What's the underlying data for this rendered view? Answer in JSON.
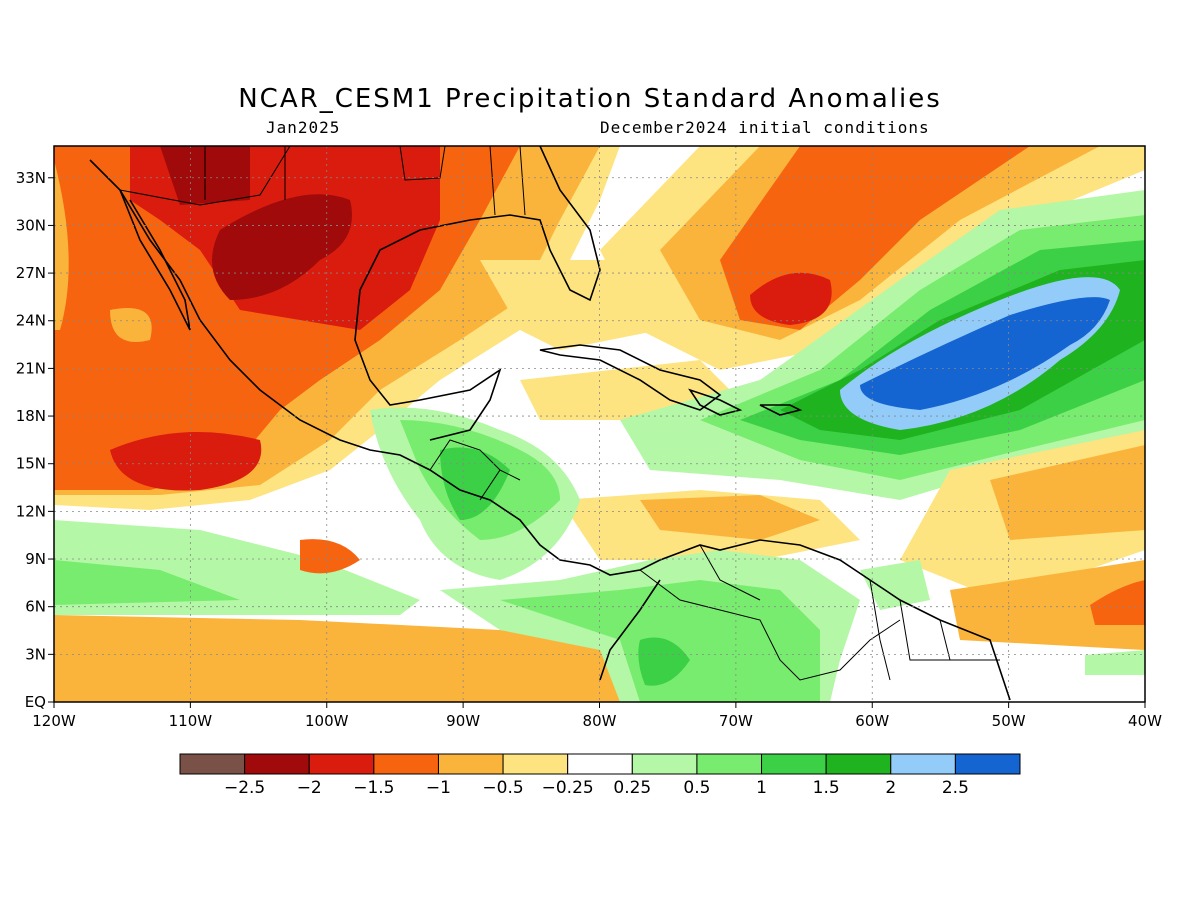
{
  "title": "NCAR_CESM1 Precipitation Standard Anomalies",
  "subtitle_left": "Jan2025",
  "subtitle_right": "December2024 initial conditions",
  "map": {
    "lon_range": [
      -120,
      -40
    ],
    "lat_range": [
      0,
      35
    ],
    "lon_ticks": [
      {
        "value": -120,
        "label": "120W"
      },
      {
        "value": -110,
        "label": "110W"
      },
      {
        "value": -100,
        "label": "100W"
      },
      {
        "value": -90,
        "label": "90W"
      },
      {
        "value": -80,
        "label": "80W"
      },
      {
        "value": -70,
        "label": "70W"
      },
      {
        "value": -60,
        "label": "60W"
      },
      {
        "value": -50,
        "label": "50W"
      },
      {
        "value": -40,
        "label": "40W"
      }
    ],
    "lat_ticks": [
      {
        "value": 0,
        "label": "EQ"
      },
      {
        "value": 3,
        "label": "3N"
      },
      {
        "value": 6,
        "label": "6N"
      },
      {
        "value": 9,
        "label": "9N"
      },
      {
        "value": 12,
        "label": "12N"
      },
      {
        "value": 15,
        "label": "15N"
      },
      {
        "value": 18,
        "label": "18N"
      },
      {
        "value": 21,
        "label": "21N"
      },
      {
        "value": 24,
        "label": "24N"
      },
      {
        "value": 27,
        "label": "27N"
      },
      {
        "value": 30,
        "label": "30N"
      },
      {
        "value": 33,
        "label": "33N"
      }
    ],
    "grid": true
  },
  "colorbar": {
    "colors": [
      "#7a5147",
      "#a00a0a",
      "#d91c0e",
      "#f76410",
      "#fbb43b",
      "#fde480",
      "#ffffff",
      "#b4f7a6",
      "#78ec6e",
      "#3cd046",
      "#1fb31f",
      "#94ccf9",
      "#1464d2"
    ],
    "labels": [
      "-2.5",
      "-2",
      "-1.5",
      "-1",
      "-0.5",
      "-0.25",
      "0.25",
      "0.5",
      "1",
      "1.5",
      "2",
      "2.5"
    ]
  }
}
